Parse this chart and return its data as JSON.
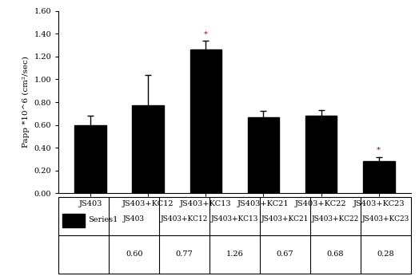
{
  "categories": [
    "JS403",
    "JS403+KC12",
    "JS403+KC13",
    "JS403+KC21",
    "JS403+KC22",
    "JS403+KC23"
  ],
  "values": [
    0.6,
    0.77,
    1.26,
    0.67,
    0.68,
    0.28
  ],
  "errors": [
    0.08,
    0.27,
    0.08,
    0.05,
    0.05,
    0.04
  ],
  "bar_color": "#000000",
  "asterisk_bars": [
    2,
    5
  ],
  "asterisk_color": "#cc0000",
  "ylim": [
    0.0,
    1.6
  ],
  "yticks": [
    0.0,
    0.2,
    0.4,
    0.6,
    0.8,
    1.0,
    1.2,
    1.4,
    1.6
  ],
  "ylabel": "Papp *10^6 (cm²/sec)",
  "legend_label": "Series1",
  "table_values": [
    "0.60",
    "0.77",
    "1.26",
    "0.67",
    "0.68",
    "0.28"
  ],
  "bg_color": "#ffffff",
  "axis_color": "#000000",
  "font_family": "DejaVu Serif"
}
